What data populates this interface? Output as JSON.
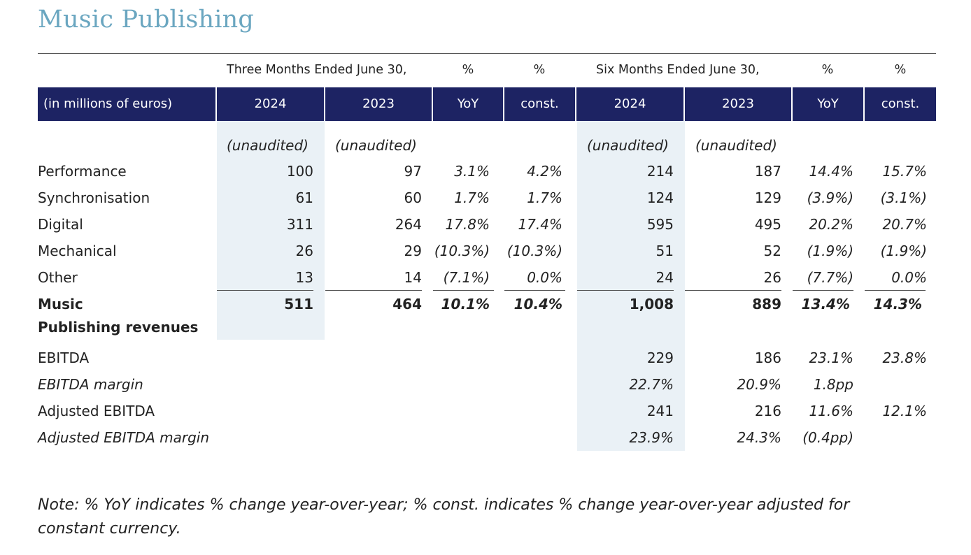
{
  "title": "Music Publishing",
  "header": {
    "three_months": "Three Months Ended June 30,",
    "six_months": "Six Months Ended June 30,",
    "pct": "%",
    "units_label": "(in millions of euros)",
    "col_2024": "2024",
    "col_2023": "2023",
    "col_yoy": "YoY",
    "col_const": "const."
  },
  "unaudited": "(unaudited)",
  "rows": [
    {
      "label": "Performance",
      "q24": "100",
      "q23": "97",
      "qyoy": "3.1%",
      "qconst": "4.2%",
      "s24": "214",
      "s23": "187",
      "syoy": "14.4%",
      "sconst": "15.7%"
    },
    {
      "label": "Synchronisation",
      "q24": "61",
      "q23": "60",
      "qyoy": "1.7%",
      "qconst": "1.7%",
      "s24": "124",
      "s23": "129",
      "syoy": "(3.9%)",
      "sconst": "(3.1%)"
    },
    {
      "label": "Digital",
      "q24": "311",
      "q23": "264",
      "qyoy": "17.8%",
      "qconst": "17.4%",
      "s24": "595",
      "s23": "495",
      "syoy": "20.2%",
      "sconst": "20.7%"
    },
    {
      "label": "Mechanical",
      "q24": "26",
      "q23": "29",
      "qyoy": "(10.3%)",
      "qconst": "(10.3%)",
      "s24": "51",
      "s23": "52",
      "syoy": "(1.9%)",
      "sconst": "(1.9%)"
    },
    {
      "label": "Other",
      "q24": "13",
      "q23": "14",
      "qyoy": "(7.1%)",
      "qconst": "0.0%",
      "s24": "24",
      "s23": "26",
      "syoy": "(7.7%)",
      "sconst": "0.0%"
    }
  ],
  "total": {
    "label_line1": "Music",
    "label_line2": "Publishing revenues",
    "q24": "511",
    "q23": "464",
    "qyoy": "10.1%",
    "qconst": "10.4%",
    "s24": "1,008",
    "s23": "889",
    "syoy": "13.4%",
    "sconst": "14.3%"
  },
  "ebitda": [
    {
      "label": "EBITDA",
      "s24": "229",
      "s23": "186",
      "syoy": "23.1%",
      "sconst": "23.8%"
    },
    {
      "label": "EBITDA margin",
      "s24": "22.7%",
      "s23": "20.9%",
      "syoy": "1.8pp",
      "sconst": ""
    },
    {
      "label": "Adjusted EBITDA",
      "s24": "241",
      "s23": "216",
      "syoy": "11.6%",
      "sconst": "12.1%"
    },
    {
      "label": "Adjusted EBITDA margin",
      "s24": "23.9%",
      "s23": "24.3%",
      "syoy": "(0.4pp)",
      "sconst": ""
    }
  ],
  "note": "Note: % YoY indicates % change year-over-year; % const. indicates % change year-over-year adjusted for constant currency.",
  "colors": {
    "title": "#6aa6c0",
    "band": "#1d2363",
    "shade": "#eaf1f6"
  }
}
